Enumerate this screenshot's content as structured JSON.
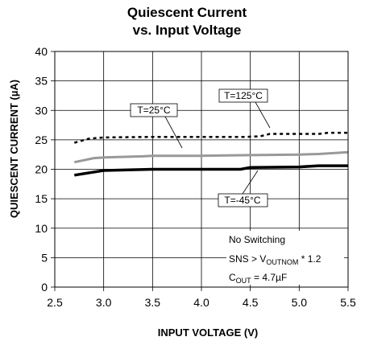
{
  "chart_data": {
    "type": "line",
    "title_line1": "Quiescent Current",
    "title_line2": "vs. Input Voltage",
    "xlabel": "INPUT VOLTAGE (V)",
    "ylabel": "QUIESCENT CURRENT (µA)",
    "xlim": [
      2.5,
      5.5
    ],
    "ylim": [
      0,
      40
    ],
    "xticks": [
      "2.5",
      "3.0",
      "3.5",
      "4.0",
      "4.5",
      "5.0",
      "5.5"
    ],
    "yticks": [
      "0",
      "5",
      "10",
      "15",
      "20",
      "25",
      "30",
      "35",
      "40"
    ],
    "grid": true,
    "series": [
      {
        "name": "T=125°C",
        "color": "#000000",
        "style": "dotted",
        "x": [
          2.7,
          2.85,
          3.0,
          3.5,
          4.0,
          4.45,
          4.6,
          4.7,
          5.0,
          5.2,
          5.3,
          5.5
        ],
        "y": [
          24.5,
          25.2,
          25.4,
          25.5,
          25.5,
          25.5,
          25.6,
          26.0,
          26.0,
          26.0,
          26.2,
          26.2
        ]
      },
      {
        "name": "T=25°C",
        "color": "#999999",
        "style": "solid",
        "x": [
          2.7,
          2.9,
          3.0,
          3.4,
          3.5,
          4.0,
          4.5,
          5.0,
          5.2,
          5.5
        ],
        "y": [
          21.2,
          21.9,
          22.0,
          22.2,
          22.3,
          22.3,
          22.4,
          22.5,
          22.6,
          22.9
        ]
      },
      {
        "name": "T=-45°C",
        "color": "#000000",
        "style": "solid-bold",
        "x": [
          2.7,
          3.0,
          3.5,
          4.0,
          4.4,
          4.5,
          5.0,
          5.2,
          5.5
        ],
        "y": [
          19.0,
          19.8,
          20.0,
          20.0,
          20.0,
          20.3,
          20.4,
          20.6,
          20.6
        ]
      }
    ],
    "notes": {
      "line1": "No Switching",
      "line2_pre": "SNS > V",
      "line2_sub": "OUTNOM",
      "line2_post": " * 1.2",
      "line3_pre": "C",
      "line3_sub": "OUT",
      "line3_post": " = 4.7µF"
    }
  }
}
